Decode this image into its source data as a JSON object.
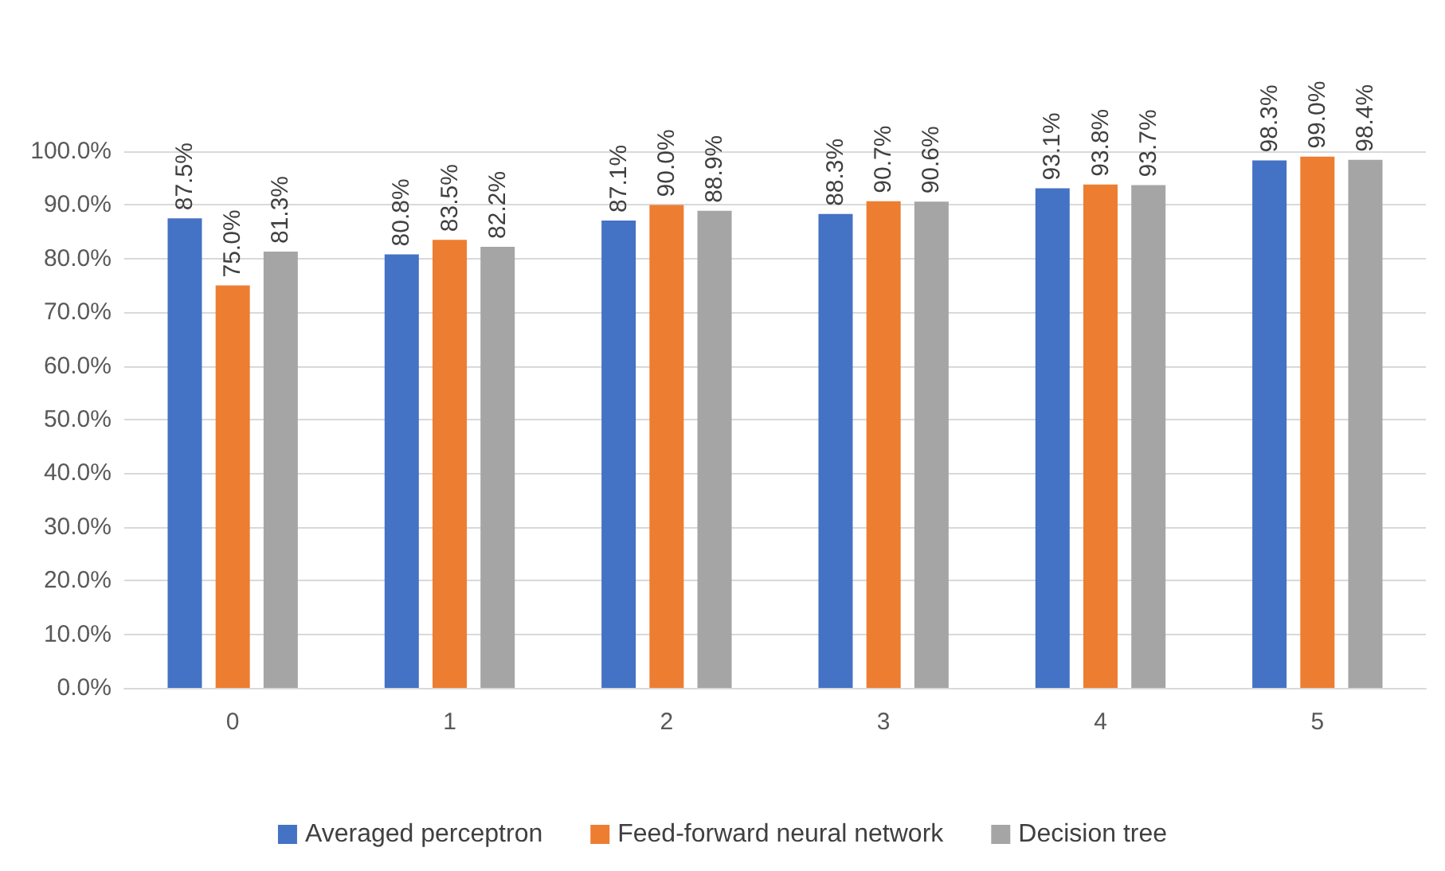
{
  "chart_data": {
    "type": "bar",
    "categories": [
      "0",
      "1",
      "2",
      "3",
      "4",
      "5"
    ],
    "series": [
      {
        "name": "Averaged perceptron",
        "color": "#4472c4",
        "values": [
          87.5,
          80.8,
          87.1,
          88.3,
          93.1,
          98.3
        ],
        "value_labels": [
          "87.5%",
          "80.8%",
          "87.1%",
          "88.3%",
          "93.1%",
          "98.3%"
        ]
      },
      {
        "name": "Feed-forward neural network",
        "color": "#ed7d31",
        "values": [
          75.0,
          83.5,
          90.0,
          90.7,
          93.8,
          99.0
        ],
        "value_labels": [
          "75.0%",
          "83.5%",
          "90.0%",
          "90.7%",
          "93.8%",
          "99.0%"
        ]
      },
      {
        "name": "Decision tree",
        "color": "#a5a5a5",
        "values": [
          81.3,
          82.2,
          88.9,
          90.6,
          93.7,
          98.4
        ],
        "value_labels": [
          "81.3%",
          "82.2%",
          "88.9%",
          "90.6%",
          "93.7%",
          "98.4%"
        ]
      }
    ],
    "ylim": [
      0,
      100
    ],
    "yticks": [
      {
        "value": 0,
        "label": "0.0%"
      },
      {
        "value": 10,
        "label": "10.0%"
      },
      {
        "value": 20,
        "label": "20.0%"
      },
      {
        "value": 30,
        "label": "30.0%"
      },
      {
        "value": 40,
        "label": "40.0%"
      },
      {
        "value": 50,
        "label": "50.0%"
      },
      {
        "value": 60,
        "label": "60.0%"
      },
      {
        "value": 70,
        "label": "70.0%"
      },
      {
        "value": 80,
        "label": "80.0%"
      },
      {
        "value": 90,
        "label": "90.0%"
      },
      {
        "value": 100,
        "label": "100.0%"
      }
    ],
    "grid": "y",
    "legend": "bottom"
  }
}
